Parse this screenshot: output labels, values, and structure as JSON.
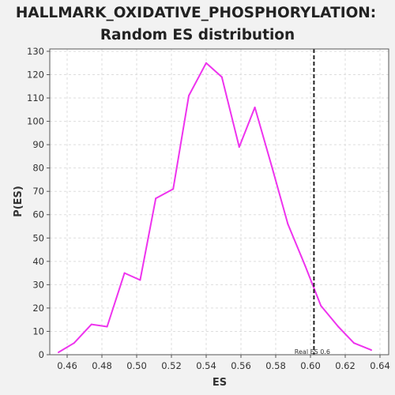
{
  "chart_data": {
    "type": "line",
    "title_line1": "HALLMARK_OXIDATIVE_PHOSPHORYLATION:",
    "title_line2": "Random ES distribution",
    "xlabel": "ES",
    "ylabel": "P(ES)",
    "xlim": [
      0.45,
      0.645
    ],
    "ylim": [
      0,
      131
    ],
    "x_ticks": [
      0.46,
      0.48,
      0.5,
      0.52,
      0.54,
      0.56,
      0.58,
      0.6,
      0.62,
      0.64
    ],
    "x_tick_labels": [
      "0.46",
      "0.48",
      "0.50",
      "0.52",
      "0.54",
      "0.56",
      "0.58",
      "0.60",
      "0.62",
      "0.64"
    ],
    "y_ticks": [
      0,
      10,
      20,
      30,
      40,
      50,
      60,
      70,
      80,
      90,
      100,
      110,
      120,
      130
    ],
    "grid": true,
    "series": [
      {
        "color": "#ee33ee",
        "x": [
          0.455,
          0.464,
          0.474,
          0.483,
          0.493,
          0.502,
          0.511,
          0.521,
          0.53,
          0.54,
          0.549,
          0.559,
          0.568,
          0.578,
          0.587,
          0.597,
          0.606,
          0.616,
          0.625,
          0.635
        ],
        "y": [
          1,
          5,
          13,
          12,
          35,
          32,
          67,
          71,
          111,
          125,
          119,
          89,
          106,
          80,
          56,
          38,
          21,
          12,
          5,
          2
        ]
      }
    ],
    "real_es": {
      "value": 0.602,
      "label": "Real ES 0.6",
      "color": "#222222"
    }
  }
}
